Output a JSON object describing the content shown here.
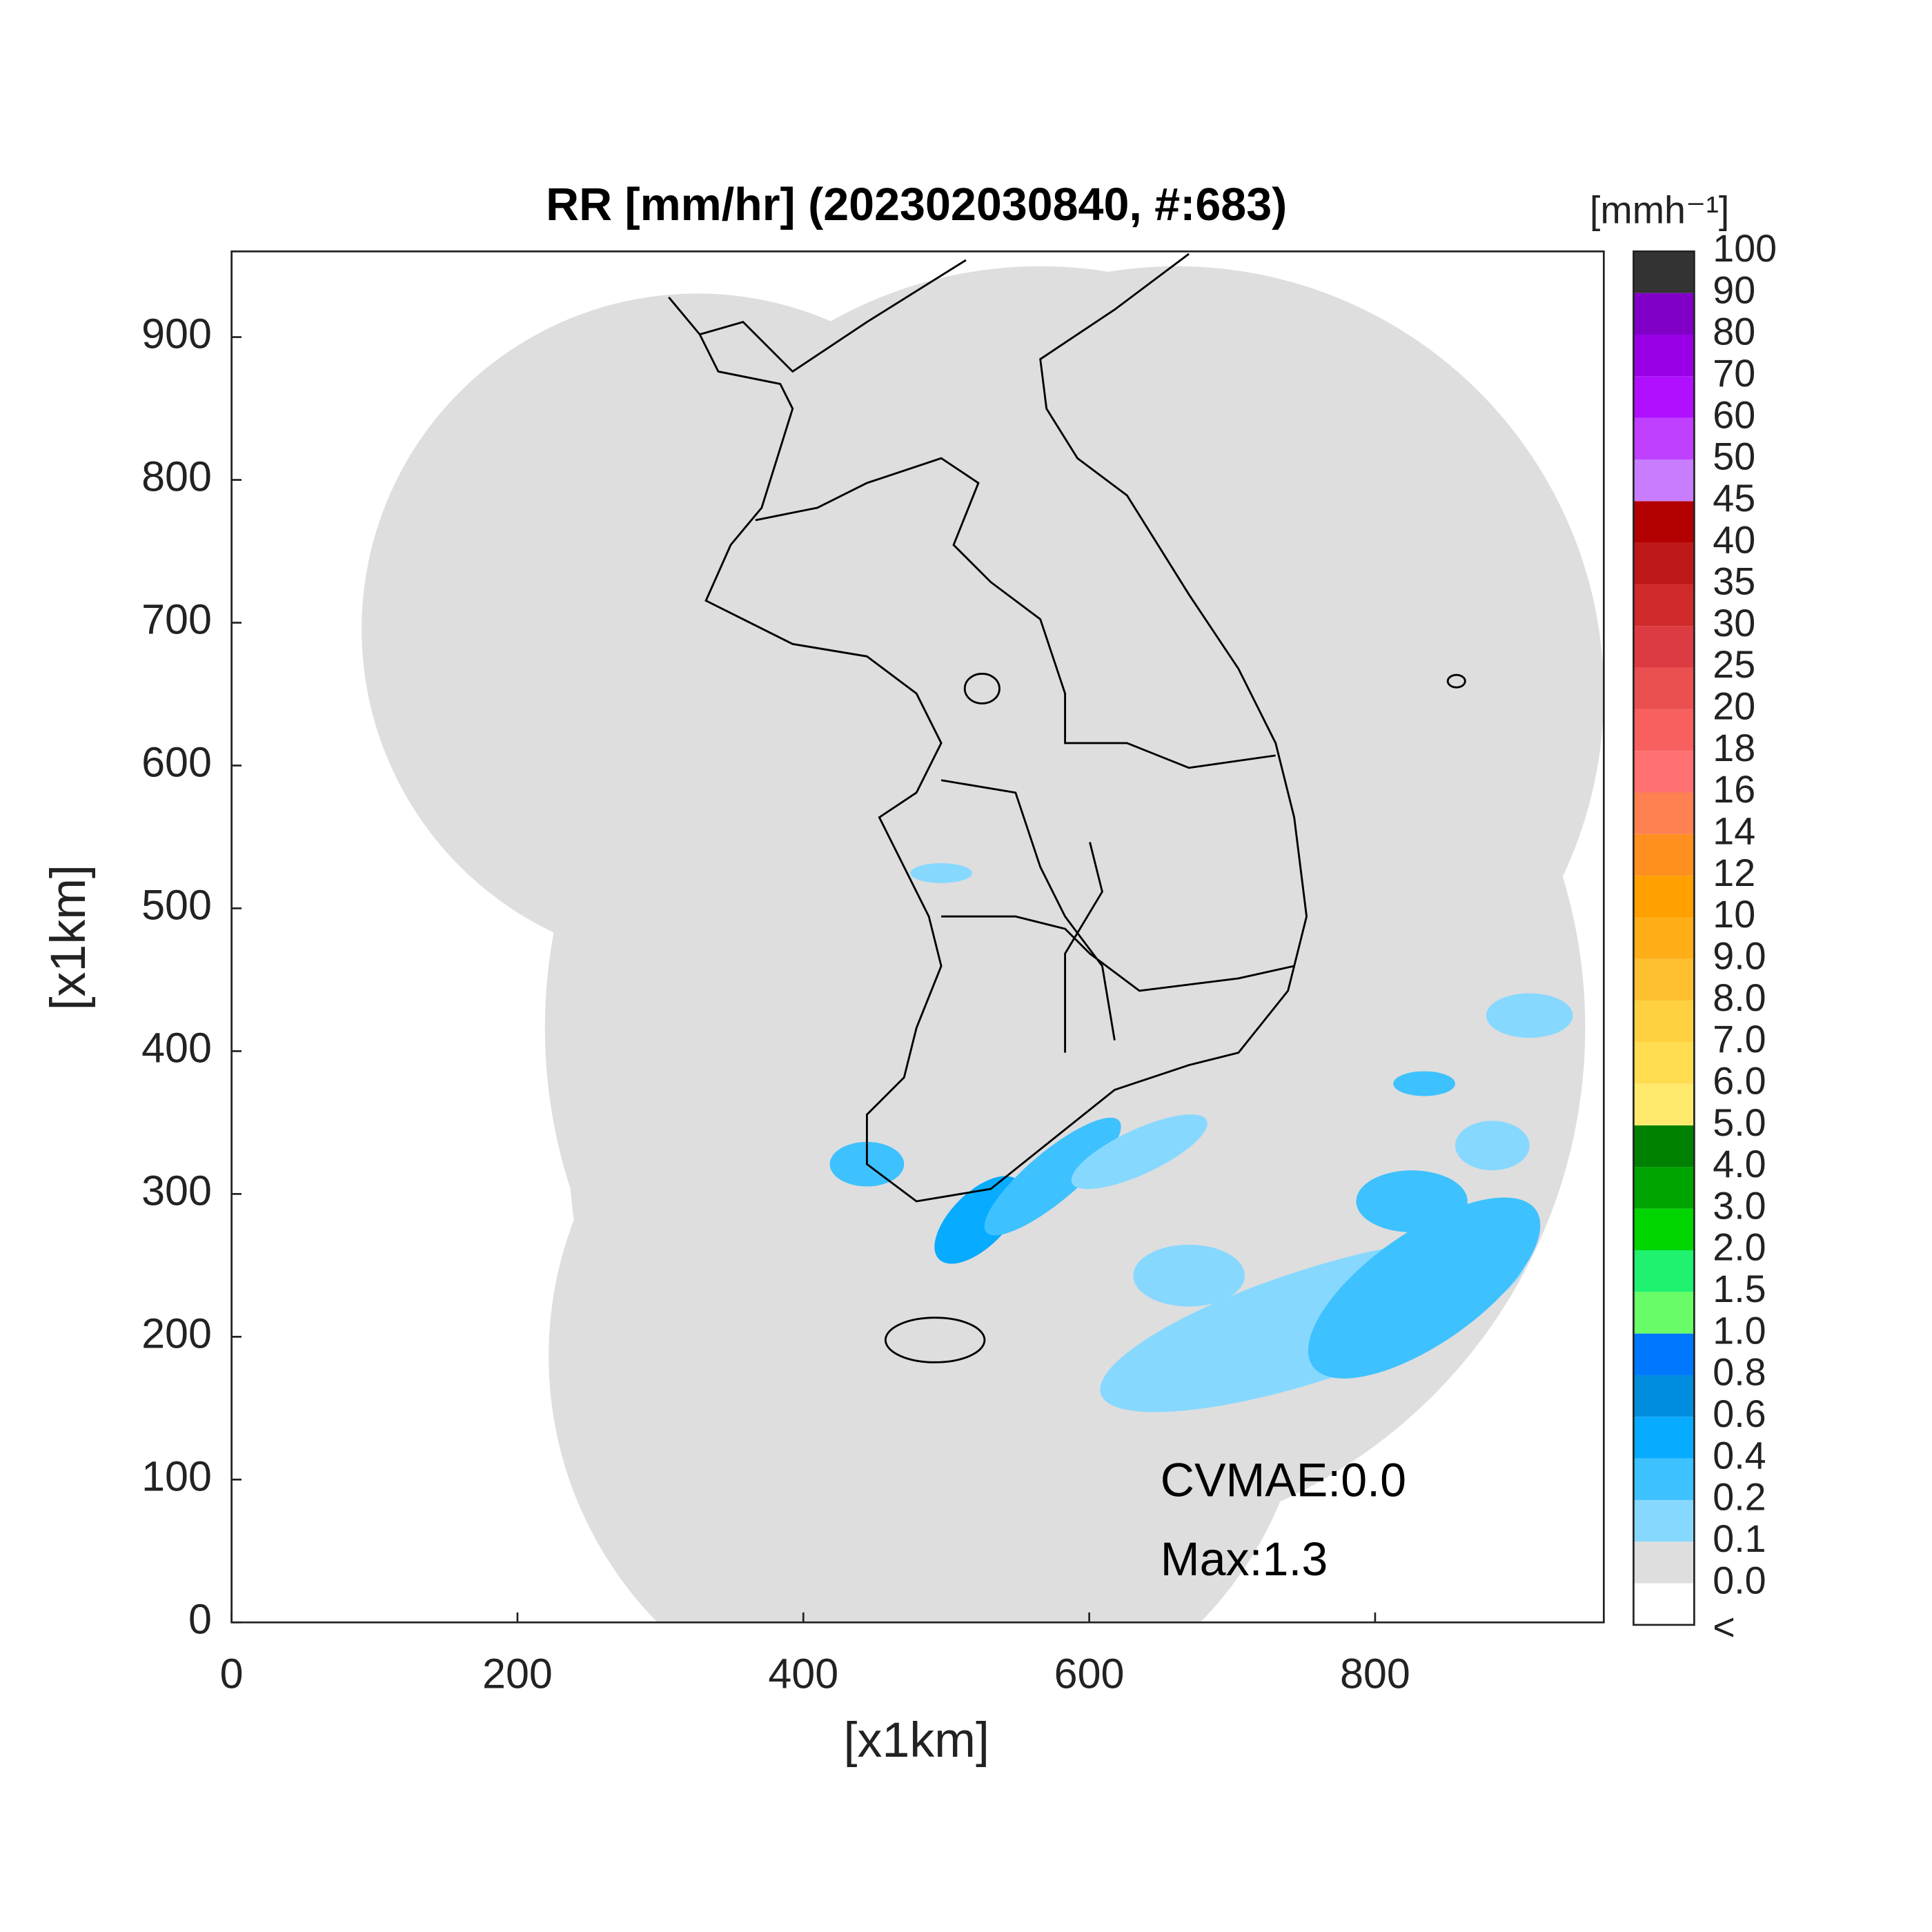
{
  "chart_data": {
    "type": "radar_map",
    "title": "RR [mm/hr] (202302030840, #:683)",
    "xlabel": "[x1km]",
    "ylabel": "[x1km]",
    "xlim": [
      0,
      960
    ],
    "ylim": [
      0,
      960
    ],
    "xticks": [
      0,
      200,
      400,
      600,
      800
    ],
    "yticks": [
      0,
      100,
      200,
      300,
      400,
      500,
      600,
      700,
      800,
      900
    ],
    "annotations": [
      "CVMAE:0.0",
      "Max:1.3"
    ],
    "colorbar": {
      "label": "[mmh⁻¹]",
      "labels": [
        "<",
        "0.0",
        "0.1",
        "0.2",
        "0.4",
        "0.6",
        "0.8",
        "1.0",
        "1.5",
        "2.0",
        "3.0",
        "4.0",
        "5.0",
        "6.0",
        "7.0",
        "8.0",
        "9.0",
        "10",
        "12",
        "14",
        "16",
        "18",
        "20",
        "25",
        "30",
        "35",
        "40",
        "45",
        "50",
        "60",
        "70",
        "80",
        "90",
        "100"
      ],
      "colors": [
        "#ffffff",
        "#dedede",
        "#87d8ff",
        "#3ec1ff",
        "#07abff",
        "#008dde",
        "#0077ff",
        "#69fc69",
        "#1ef26e",
        "#00d500",
        "#00a400",
        "#008000",
        "#ffea6e",
        "#ffdc50",
        "#ffd040",
        "#ffc030",
        "#ffae18",
        "#ffa000",
        "#ff9020",
        "#ff8050",
        "#ff7070",
        "#f86060",
        "#ea5050",
        "#dd3b42",
        "#d02a2a",
        "#bf1818",
        "#b30000",
        "#c87dff",
        "#c040ff",
        "#b010ff",
        "#9a00e8",
        "#8000c8",
        "#333333"
      ]
    }
  }
}
